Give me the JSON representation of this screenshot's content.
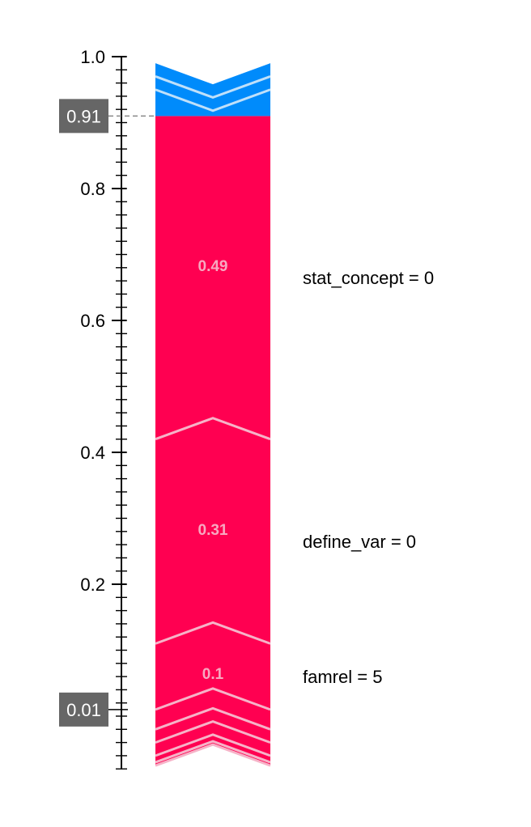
{
  "chart_data": {
    "type": "force",
    "orientation": "vertical",
    "ylim": [
      -0.08,
      1.0
    ],
    "ticks": [
      {
        "value": 1.0,
        "label": "1.0"
      },
      {
        "value": 0.8,
        "label": "0.8"
      },
      {
        "value": 0.6,
        "label": "0.6"
      },
      {
        "value": 0.4,
        "label": "0.4"
      },
      {
        "value": 0.2,
        "label": "0.2"
      }
    ],
    "output_value": {
      "value": 0.91,
      "label": "0.91"
    },
    "base_value": {
      "value": 0.01,
      "label": "0.01"
    },
    "colors": {
      "positive": "#ff0051",
      "negative": "#008bfb",
      "separator": "#f6b3c8",
      "negative_separator": "#bfe0fa",
      "marker_bg": "#666666"
    },
    "positive_segments": [
      {
        "from": 0.42,
        "to": 0.91,
        "value": "0.49",
        "feature": "stat_concept = 0"
      },
      {
        "from": 0.11,
        "to": 0.42,
        "value": "0.31",
        "feature": "define_var = 0"
      },
      {
        "from": 0.01,
        "to": 0.11,
        "value": "0.1",
        "feature": "famrel = 5"
      },
      {
        "from": -0.02,
        "to": 0.01,
        "value": "",
        "feature": ""
      },
      {
        "from": -0.04,
        "to": -0.02,
        "value": "",
        "feature": ""
      },
      {
        "from": -0.06,
        "to": -0.04,
        "value": "",
        "feature": ""
      },
      {
        "from": -0.07,
        "to": -0.06,
        "value": "",
        "feature": ""
      },
      {
        "from": -0.075,
        "to": -0.07,
        "value": "",
        "feature": ""
      }
    ],
    "negative_segments": [
      {
        "from": 0.91,
        "to": 0.95,
        "value": "",
        "feature": ""
      },
      {
        "from": 0.95,
        "to": 0.97,
        "value": "",
        "feature": ""
      },
      {
        "from": 0.97,
        "to": 0.99,
        "value": "",
        "feature": ""
      }
    ]
  }
}
